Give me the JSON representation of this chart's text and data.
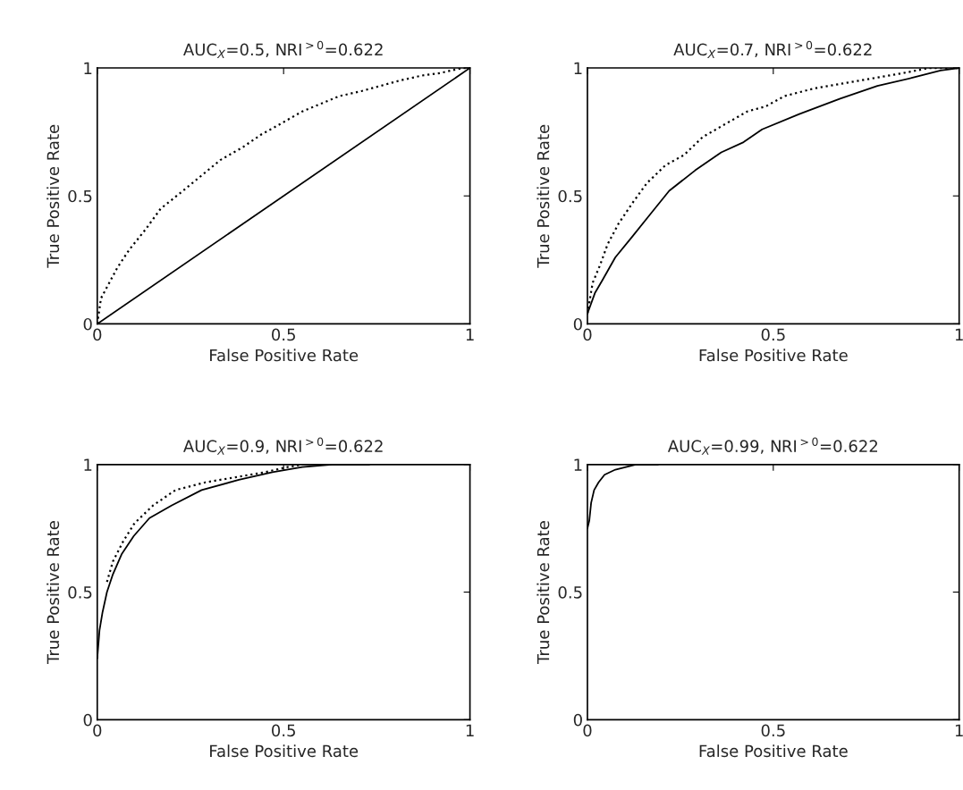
{
  "chart_data": [
    {
      "type": "line",
      "title": "AUC$_{X}$=0.5, NRI$^{>0}$=0.622",
      "xlabel": "False Positive Rate",
      "ylabel": "True Positive Rate",
      "xlim": [
        0,
        1
      ],
      "ylim": [
        0,
        1
      ],
      "xticks": [
        0,
        0.5,
        1
      ],
      "yticks": [
        0,
        0.5,
        1
      ],
      "grid": false,
      "series": [
        {
          "color": "#000000",
          "line_style": "solid",
          "x": [
            0,
            1
          ],
          "values": [
            0,
            1
          ]
        },
        {
          "color": "#000000",
          "line_style": "dotted",
          "x": [
            0,
            0.01,
            0.054,
            0.086,
            0.13,
            0.17,
            0.23,
            0.28,
            0.33,
            0.39,
            0.44,
            0.49,
            0.55,
            0.6,
            0.65,
            0.71,
            0.76,
            0.81,
            0.87,
            0.92,
            0.98,
            1
          ],
          "values": [
            0,
            0.1,
            0.22,
            0.29,
            0.37,
            0.45,
            0.52,
            0.58,
            0.64,
            0.69,
            0.74,
            0.78,
            0.83,
            0.86,
            0.89,
            0.91,
            0.93,
            0.95,
            0.97,
            0.98,
            1,
            1
          ]
        }
      ]
    },
    {
      "type": "line",
      "title": "AUC$_{X}$=0.7, NRI$^{>0}$=0.622",
      "xlabel": "False Positive Rate",
      "ylabel": "True Positive Rate",
      "xlim": [
        0,
        1
      ],
      "ylim": [
        0,
        1
      ],
      "xticks": [
        0,
        0.5,
        1
      ],
      "yticks": [
        0,
        0.5,
        1
      ],
      "grid": false,
      "series": [
        {
          "color": "#000000",
          "line_style": "solid",
          "x": [
            0,
            0.02,
            0.04,
            0.075,
            0.12,
            0.17,
            0.22,
            0.29,
            0.36,
            0.42,
            0.47,
            0.57,
            0.68,
            0.78,
            0.87,
            0.95,
            1
          ],
          "values": [
            0.04,
            0.12,
            0.17,
            0.26,
            0.34,
            0.43,
            0.52,
            0.6,
            0.67,
            0.71,
            0.76,
            0.82,
            0.88,
            0.93,
            0.96,
            0.99,
            1
          ]
        },
        {
          "color": "#000000",
          "line_style": "dotted",
          "x": [
            0,
            0.014,
            0.034,
            0.054,
            0.083,
            0.12,
            0.16,
            0.21,
            0.26,
            0.31,
            0.37,
            0.43,
            0.48,
            0.53,
            0.61,
            0.69,
            0.77,
            0.85,
            0.92,
            1
          ],
          "values": [
            0.04,
            0.16,
            0.23,
            0.31,
            0.39,
            0.47,
            0.55,
            0.62,
            0.66,
            0.73,
            0.78,
            0.83,
            0.85,
            0.89,
            0.92,
            0.94,
            0.96,
            0.98,
            1,
            1
          ]
        }
      ]
    },
    {
      "type": "line",
      "title": "AUC$_{X}$=0.9, NRI$^{>0}$=0.622",
      "xlabel": "False Positive Rate",
      "ylabel": "True Positive Rate",
      "xlim": [
        0,
        1
      ],
      "ylim": [
        0,
        1
      ],
      "xticks": [
        0,
        0.5,
        1
      ],
      "yticks": [
        0,
        0.5,
        1
      ],
      "grid": false,
      "series": [
        {
          "color": "#000000",
          "line_style": "solid",
          "x": [
            0,
            0.006,
            0.014,
            0.026,
            0.042,
            0.066,
            0.098,
            0.14,
            0.2,
            0.28,
            0.38,
            0.47,
            0.55,
            0.63,
            0.73
          ],
          "values": [
            0.24,
            0.35,
            0.42,
            0.5,
            0.57,
            0.65,
            0.72,
            0.79,
            0.84,
            0.9,
            0.94,
            0.97,
            0.99,
            1,
            1
          ]
        },
        {
          "color": "#000000",
          "line_style": "dotted",
          "x": [
            0.026,
            0.042,
            0.07,
            0.1,
            0.15,
            0.21,
            0.29,
            0.37,
            0.45,
            0.51,
            0.55
          ],
          "values": [
            0.54,
            0.62,
            0.7,
            0.77,
            0.84,
            0.9,
            0.93,
            0.95,
            0.97,
            0.99,
            1
          ]
        }
      ]
    },
    {
      "type": "line",
      "title": "AUC$_{X}$=0.99, NRI$^{>0}$=0.622",
      "xlabel": "False Positive Rate",
      "ylabel": "True Positive Rate",
      "xlim": [
        0,
        1
      ],
      "ylim": [
        0,
        1
      ],
      "xticks": [
        0,
        0.5,
        1
      ],
      "yticks": [
        0,
        0.5,
        1
      ],
      "grid": false,
      "series": [
        {
          "color": "#000000",
          "line_style": "solid",
          "x": [
            0,
            0.005,
            0.01,
            0.018,
            0.03,
            0.046,
            0.075,
            0.13,
            0.19
          ],
          "values": [
            0.75,
            0.78,
            0.85,
            0.9,
            0.93,
            0.96,
            0.98,
            1,
            1
          ]
        }
      ]
    }
  ]
}
